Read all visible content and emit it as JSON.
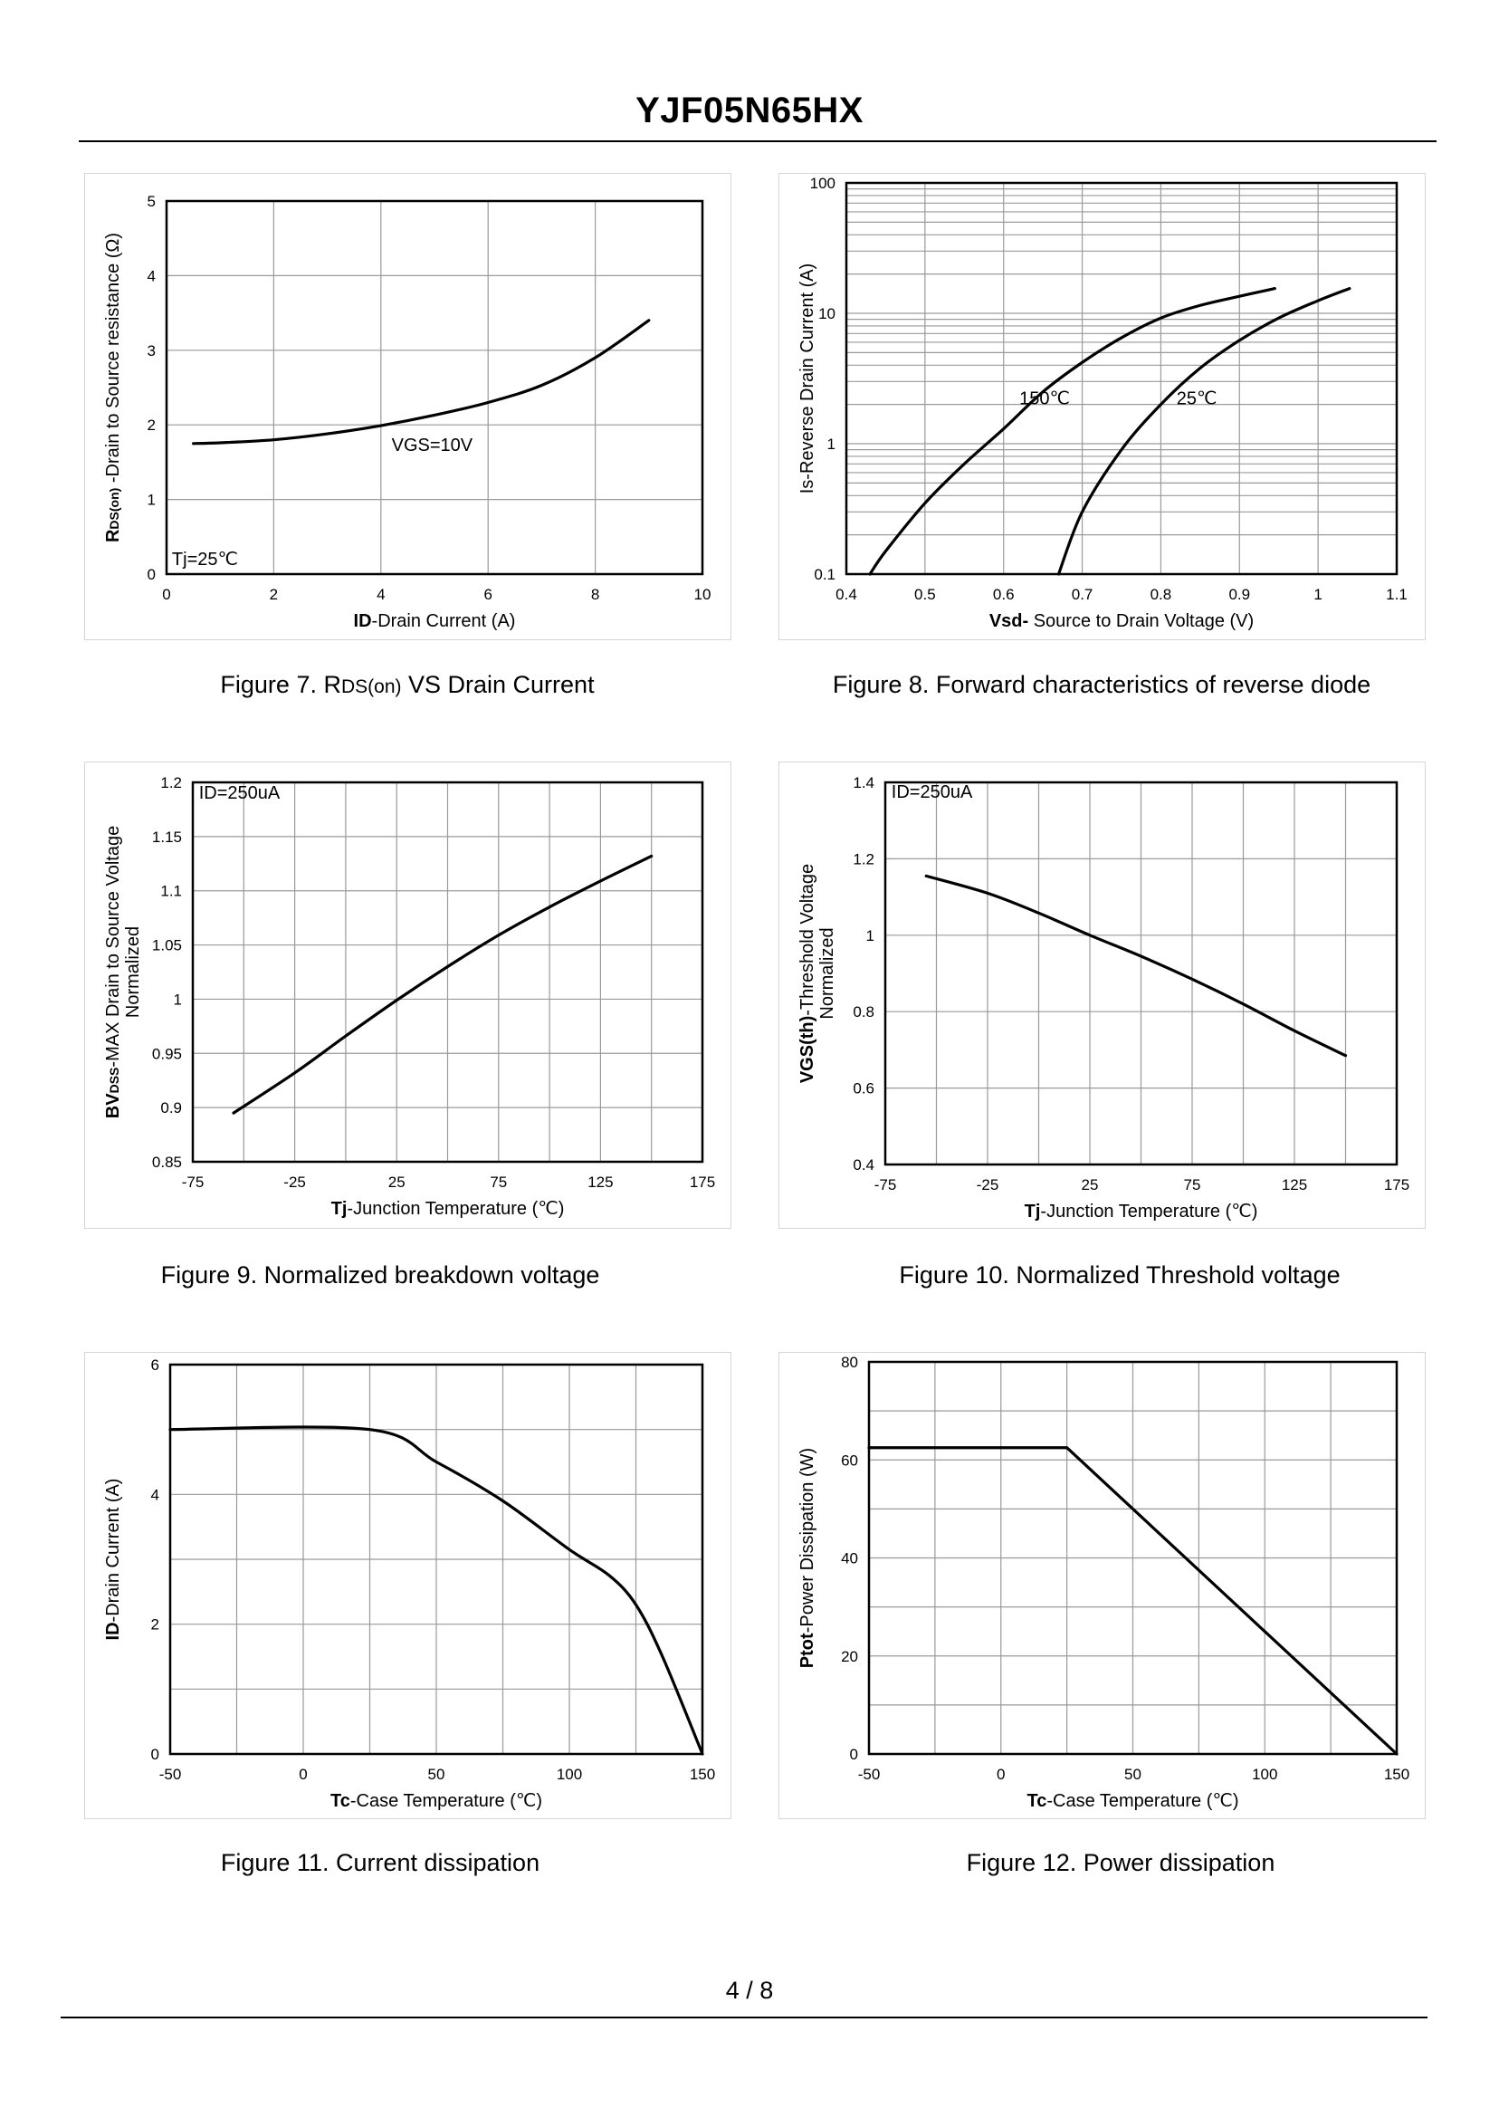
{
  "document": {
    "title": "YJF05N65HX",
    "page": "4 / 8"
  },
  "chart_data": [
    {
      "id": "fig7",
      "type": "line",
      "caption_prefix": "Figure 7.  R",
      "caption_sub": "DS(on)",
      "caption_suffix": " VS Drain Current",
      "xlabel_bold": "ID",
      "xlabel_rest": "-Drain Current  (A)",
      "ylabel_bold": "R",
      "ylabel_sub": "DS(on)",
      "ylabel_rest": " -Drain to Source resistance (Ω)",
      "xlim": [
        0,
        10
      ],
      "ylim": [
        0,
        5
      ],
      "yscale": "linear",
      "xticks": [
        0,
        2,
        4,
        6,
        8,
        10
      ],
      "yticks": [
        0,
        1,
        2,
        3,
        4,
        5
      ],
      "xgrid": [
        0,
        2,
        4,
        6,
        8,
        10
      ],
      "ygrid": [
        0,
        1,
        2,
        3,
        4,
        5
      ],
      "series": [
        {
          "name": "VGS=10V",
          "x": [
            0.5,
            1,
            2,
            3,
            4,
            5,
            6,
            7,
            8,
            9
          ],
          "y": [
            1.75,
            1.76,
            1.8,
            1.88,
            1.99,
            2.13,
            2.3,
            2.53,
            2.9,
            3.4
          ]
        }
      ],
      "annotations": [
        {
          "text": "VGS=10V",
          "x": 4.2,
          "y": 1.65
        },
        {
          "text": "Tj=25℃",
          "x": 0.1,
          "y": 0.12
        }
      ]
    },
    {
      "id": "fig8",
      "type": "line",
      "caption_prefix": "Figure 8.  Forward characteristics of reverse diode",
      "caption_sub": "",
      "caption_suffix": "",
      "xlabel_bold": "Vsd-",
      "xlabel_rest": " Source to Drain Voltage (V)",
      "ylabel_bold": "",
      "ylabel_sub": "",
      "ylabel_rest": "Is-Reverse  Drain Current (A)",
      "xlim": [
        0.4,
        1.1
      ],
      "ylim": [
        0.1,
        100
      ],
      "yscale": "log",
      "xticks": [
        0.4,
        0.5,
        0.6,
        0.7,
        0.8,
        0.9,
        1,
        1.1
      ],
      "yticks": [
        0.1,
        1,
        10,
        100
      ],
      "xgrid": [
        0.4,
        0.5,
        0.6,
        0.7,
        0.8,
        0.9,
        1.0,
        1.1
      ],
      "ygrid": [
        0.1,
        0.2,
        0.3,
        0.4,
        0.5,
        0.6,
        0.7,
        0.8,
        0.9,
        1,
        2,
        3,
        4,
        5,
        6,
        7,
        8,
        9,
        10,
        20,
        30,
        40,
        50,
        60,
        70,
        80,
        90,
        100
      ],
      "series": [
        {
          "name": "150℃",
          "x": [
            0.43,
            0.45,
            0.5,
            0.55,
            0.6,
            0.65,
            0.7,
            0.75,
            0.8,
            0.85,
            0.9,
            0.945
          ],
          "y": [
            0.1,
            0.15,
            0.35,
            0.7,
            1.3,
            2.5,
            4.2,
            6.5,
            9.2,
            11.5,
            13.5,
            15.5
          ]
        },
        {
          "name": "25℃",
          "x": [
            0.67,
            0.7,
            0.75,
            0.8,
            0.85,
            0.9,
            0.95,
            1.0,
            1.04
          ],
          "y": [
            0.1,
            0.3,
            0.9,
            2.0,
            3.8,
            6.2,
            9.2,
            12.5,
            15.5
          ]
        }
      ],
      "annotations": [
        {
          "text": "150℃",
          "x": 0.62,
          "y": 2.0
        },
        {
          "text": "25℃",
          "x": 0.82,
          "y": 2.0
        }
      ]
    },
    {
      "id": "fig9",
      "type": "line",
      "caption_prefix": "Figure 9.  Normalized breakdown voltage",
      "caption_sub": "",
      "caption_suffix": "",
      "xlabel_bold": "Tj",
      "xlabel_rest": "-Junction  Temperature  (℃)",
      "ylabel_bold": "BV",
      "ylabel_sub": "DSS",
      "ylabel_rest": "-MAX Drain to Source Voltage",
      "ylabel_line2": "Normalized",
      "xlim": [
        -75,
        175
      ],
      "ylim": [
        0.85,
        1.2
      ],
      "yscale": "linear",
      "xticks": [
        -75,
        -25,
        25,
        75,
        125,
        175
      ],
      "yticks": [
        0.85,
        0.9,
        0.95,
        1,
        1.05,
        1.1,
        1.15,
        1.2
      ],
      "xgrid": [
        -75,
        -50,
        -25,
        0,
        25,
        50,
        75,
        100,
        125,
        150,
        175
      ],
      "ygrid": [
        0.85,
        0.9,
        0.95,
        1.0,
        1.05,
        1.1,
        1.15,
        1.2
      ],
      "series": [
        {
          "name": "BVDSS",
          "x": [
            -55,
            -25,
            0,
            25,
            50,
            75,
            100,
            125,
            150
          ],
          "y": [
            0.895,
            0.932,
            0.966,
            0.999,
            1.03,
            1.059,
            1.085,
            1.109,
            1.132
          ]
        }
      ],
      "annotations": [
        {
          "text": "ID=250uA",
          "x": -72,
          "y": 1.185
        }
      ]
    },
    {
      "id": "fig10",
      "type": "line",
      "caption_prefix": "Figure 10.  Normalized Threshold voltage",
      "caption_sub": "",
      "caption_suffix": "",
      "xlabel_bold": "Tj",
      "xlabel_rest": "-Junction  Temperature  (℃)",
      "ylabel_bold": "VGS(th)",
      "ylabel_sub": "",
      "ylabel_rest": "-Threshold  Voltage",
      "ylabel_line2": "Normalized",
      "xlim": [
        -75,
        175
      ],
      "ylim": [
        0.4,
        1.4
      ],
      "yscale": "linear",
      "xticks": [
        -75,
        -25,
        25,
        75,
        125,
        175
      ],
      "yticks": [
        0.4,
        0.6,
        0.8,
        1,
        1.2,
        1.4
      ],
      "xgrid": [
        -75,
        -50,
        -25,
        0,
        25,
        50,
        75,
        100,
        125,
        150,
        175
      ],
      "ygrid": [
        0.4,
        0.6,
        0.8,
        1.0,
        1.2,
        1.4
      ],
      "series": [
        {
          "name": "VGS(th)",
          "x": [
            -55,
            -25,
            0,
            25,
            50,
            75,
            100,
            125,
            150
          ],
          "y": [
            1.155,
            1.11,
            1.058,
            1.0,
            0.945,
            0.885,
            0.82,
            0.75,
            0.685
          ]
        }
      ],
      "annotations": [
        {
          "text": "ID=250uA",
          "x": -72,
          "y": 1.36
        }
      ]
    },
    {
      "id": "fig11",
      "type": "line",
      "caption_prefix": "Figure 11.  Current dissipation",
      "caption_sub": "",
      "caption_suffix": "",
      "xlabel_bold": "Tc",
      "xlabel_rest": "-Case Temperature  (℃)",
      "ylabel_bold": "ID",
      "ylabel_sub": "",
      "ylabel_rest": "-Drain Current  (A)",
      "xlim": [
        -50,
        150
      ],
      "ylim": [
        0,
        6
      ],
      "yscale": "linear",
      "xticks": [
        -50,
        0,
        50,
        100,
        150
      ],
      "yticks": [
        0,
        2,
        4,
        6
      ],
      "xgrid": [
        -50,
        -25,
        0,
        25,
        50,
        75,
        100,
        125,
        150
      ],
      "ygrid": [
        0,
        1,
        2,
        3,
        4,
        5,
        6
      ],
      "series": [
        {
          "name": "ID",
          "x": [
            -50,
            25,
            50,
            75,
            100,
            115,
            125,
            135,
            150
          ],
          "y": [
            5,
            5,
            4.5,
            3.9,
            3.15,
            2.75,
            2.3,
            1.5,
            0
          ]
        }
      ],
      "annotations": []
    },
    {
      "id": "fig12",
      "type": "line",
      "caption_prefix": "Figure 12.  Power dissipation",
      "caption_sub": "",
      "caption_suffix": "",
      "xlabel_bold": "Tc",
      "xlabel_rest": "-Case Temperature  (℃)",
      "ylabel_bold": "Ptot",
      "ylabel_sub": "",
      "ylabel_rest": "-Power Dissipation  (W)",
      "xlim": [
        -50,
        150
      ],
      "ylim": [
        0,
        80
      ],
      "yscale": "linear",
      "xticks": [
        -50,
        0,
        50,
        100,
        150
      ],
      "yticks": [
        0,
        20,
        40,
        60,
        80
      ],
      "xgrid": [
        -50,
        -25,
        0,
        25,
        50,
        75,
        100,
        125,
        150
      ],
      "ygrid": [
        0,
        10,
        20,
        30,
        40,
        50,
        60,
        70,
        80
      ],
      "series": [
        {
          "name": "Ptot",
          "x": [
            -50,
            25,
            150
          ],
          "y": [
            62.5,
            62.5,
            0
          ]
        }
      ],
      "annotations": []
    }
  ]
}
